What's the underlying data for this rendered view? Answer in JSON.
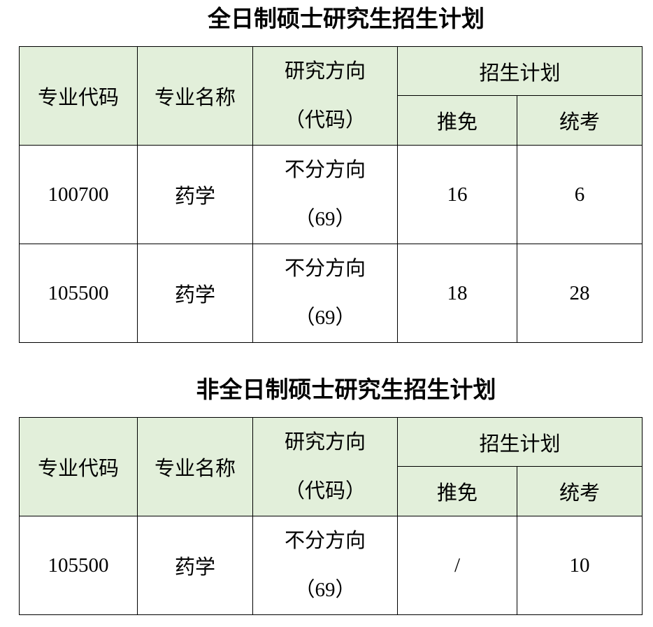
{
  "tables": [
    {
      "title": "全日制硕士研究生招生计划",
      "headers": {
        "code": "专业代码",
        "name": "专业名称",
        "direction_line1": "研究方向",
        "direction_line2": "（代码）",
        "plan": "招生计划",
        "recommended": "推免",
        "exam": "统考"
      },
      "rows": [
        {
          "code": "100700",
          "name": "药学",
          "direction": "不分方向",
          "direction_code": "（69）",
          "recommended": "16",
          "exam": "6"
        },
        {
          "code": "105500",
          "name": "药学",
          "direction": "不分方向",
          "direction_code": "（69）",
          "recommended": "18",
          "exam": "28"
        }
      ]
    },
    {
      "title": "非全日制硕士研究生招生计划",
      "headers": {
        "code": "专业代码",
        "name": "专业名称",
        "direction_line1": "研究方向",
        "direction_line2": "（代码）",
        "plan": "招生计划",
        "recommended": "推免",
        "exam": "统考"
      },
      "rows": [
        {
          "code": "105500",
          "name": "药学",
          "direction": "不分方向",
          "direction_code": "（69）",
          "recommended": "/",
          "exam": "10"
        }
      ]
    }
  ],
  "colors": {
    "header_bg": "#e2efda",
    "border": "#000000"
  }
}
